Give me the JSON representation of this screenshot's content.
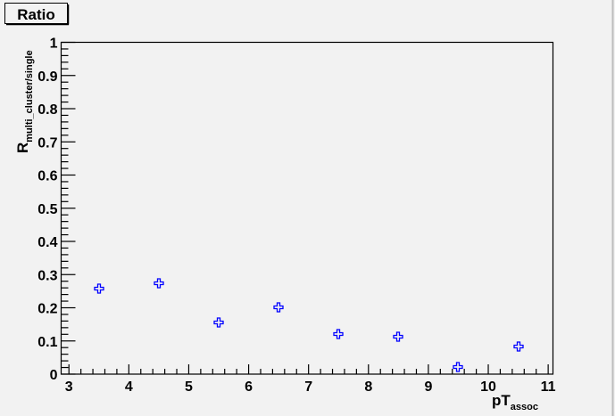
{
  "chart_data": {
    "type": "scatter",
    "title": "Ratio",
    "xlabel": "pT",
    "xlabel_sub": "assoc",
    "ylabel": "R",
    "ylabel_sub": "multi_cluster/single",
    "xlim": [
      2.87,
      11.08
    ],
    "ylim": [
      0,
      1
    ],
    "xticks": [
      3,
      4,
      5,
      6,
      7,
      8,
      9,
      10,
      11
    ],
    "yticks": [
      0,
      0.1,
      0.2,
      0.3,
      0.4,
      0.5,
      0.6,
      0.7,
      0.8,
      0.9,
      1
    ],
    "ytick_labels": [
      "0",
      "0.1",
      "0.2",
      "0.3",
      "0.4",
      "0.5",
      "0.6",
      "0.7",
      "0.8",
      "0.9",
      "1"
    ],
    "grid": false,
    "marker_color": "#0000ff",
    "marker": "open-cross",
    "x": [
      3.5,
      4.5,
      5.5,
      6.5,
      7.5,
      8.5,
      9.5,
      10.5
    ],
    "y": [
      0.257,
      0.273,
      0.157,
      0.201,
      0.12,
      0.114,
      0.021,
      0.082
    ]
  }
}
